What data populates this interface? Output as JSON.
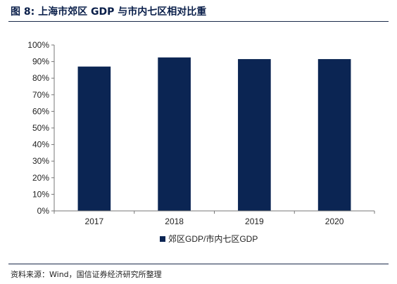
{
  "figure_title": "图 8:  上海市郊区 GDP 与市内七区相对比重",
  "source": "资料来源：Wind，国信证券经济研究所整理",
  "chart_data": {
    "type": "bar",
    "categories": [
      "2017",
      "2018",
      "2019",
      "2020"
    ],
    "series": [
      {
        "name": "郊区GDP/市内七区GDP",
        "values": [
          87,
          92.5,
          91.5,
          91.5
        ],
        "color": "#0b2553"
      }
    ],
    "ylim": [
      0,
      100
    ],
    "yticks": [
      0,
      10,
      20,
      30,
      40,
      50,
      60,
      70,
      80,
      90,
      100
    ],
    "ytick_suffix": "%",
    "grid": false,
    "legend_position": "bottom-center"
  }
}
